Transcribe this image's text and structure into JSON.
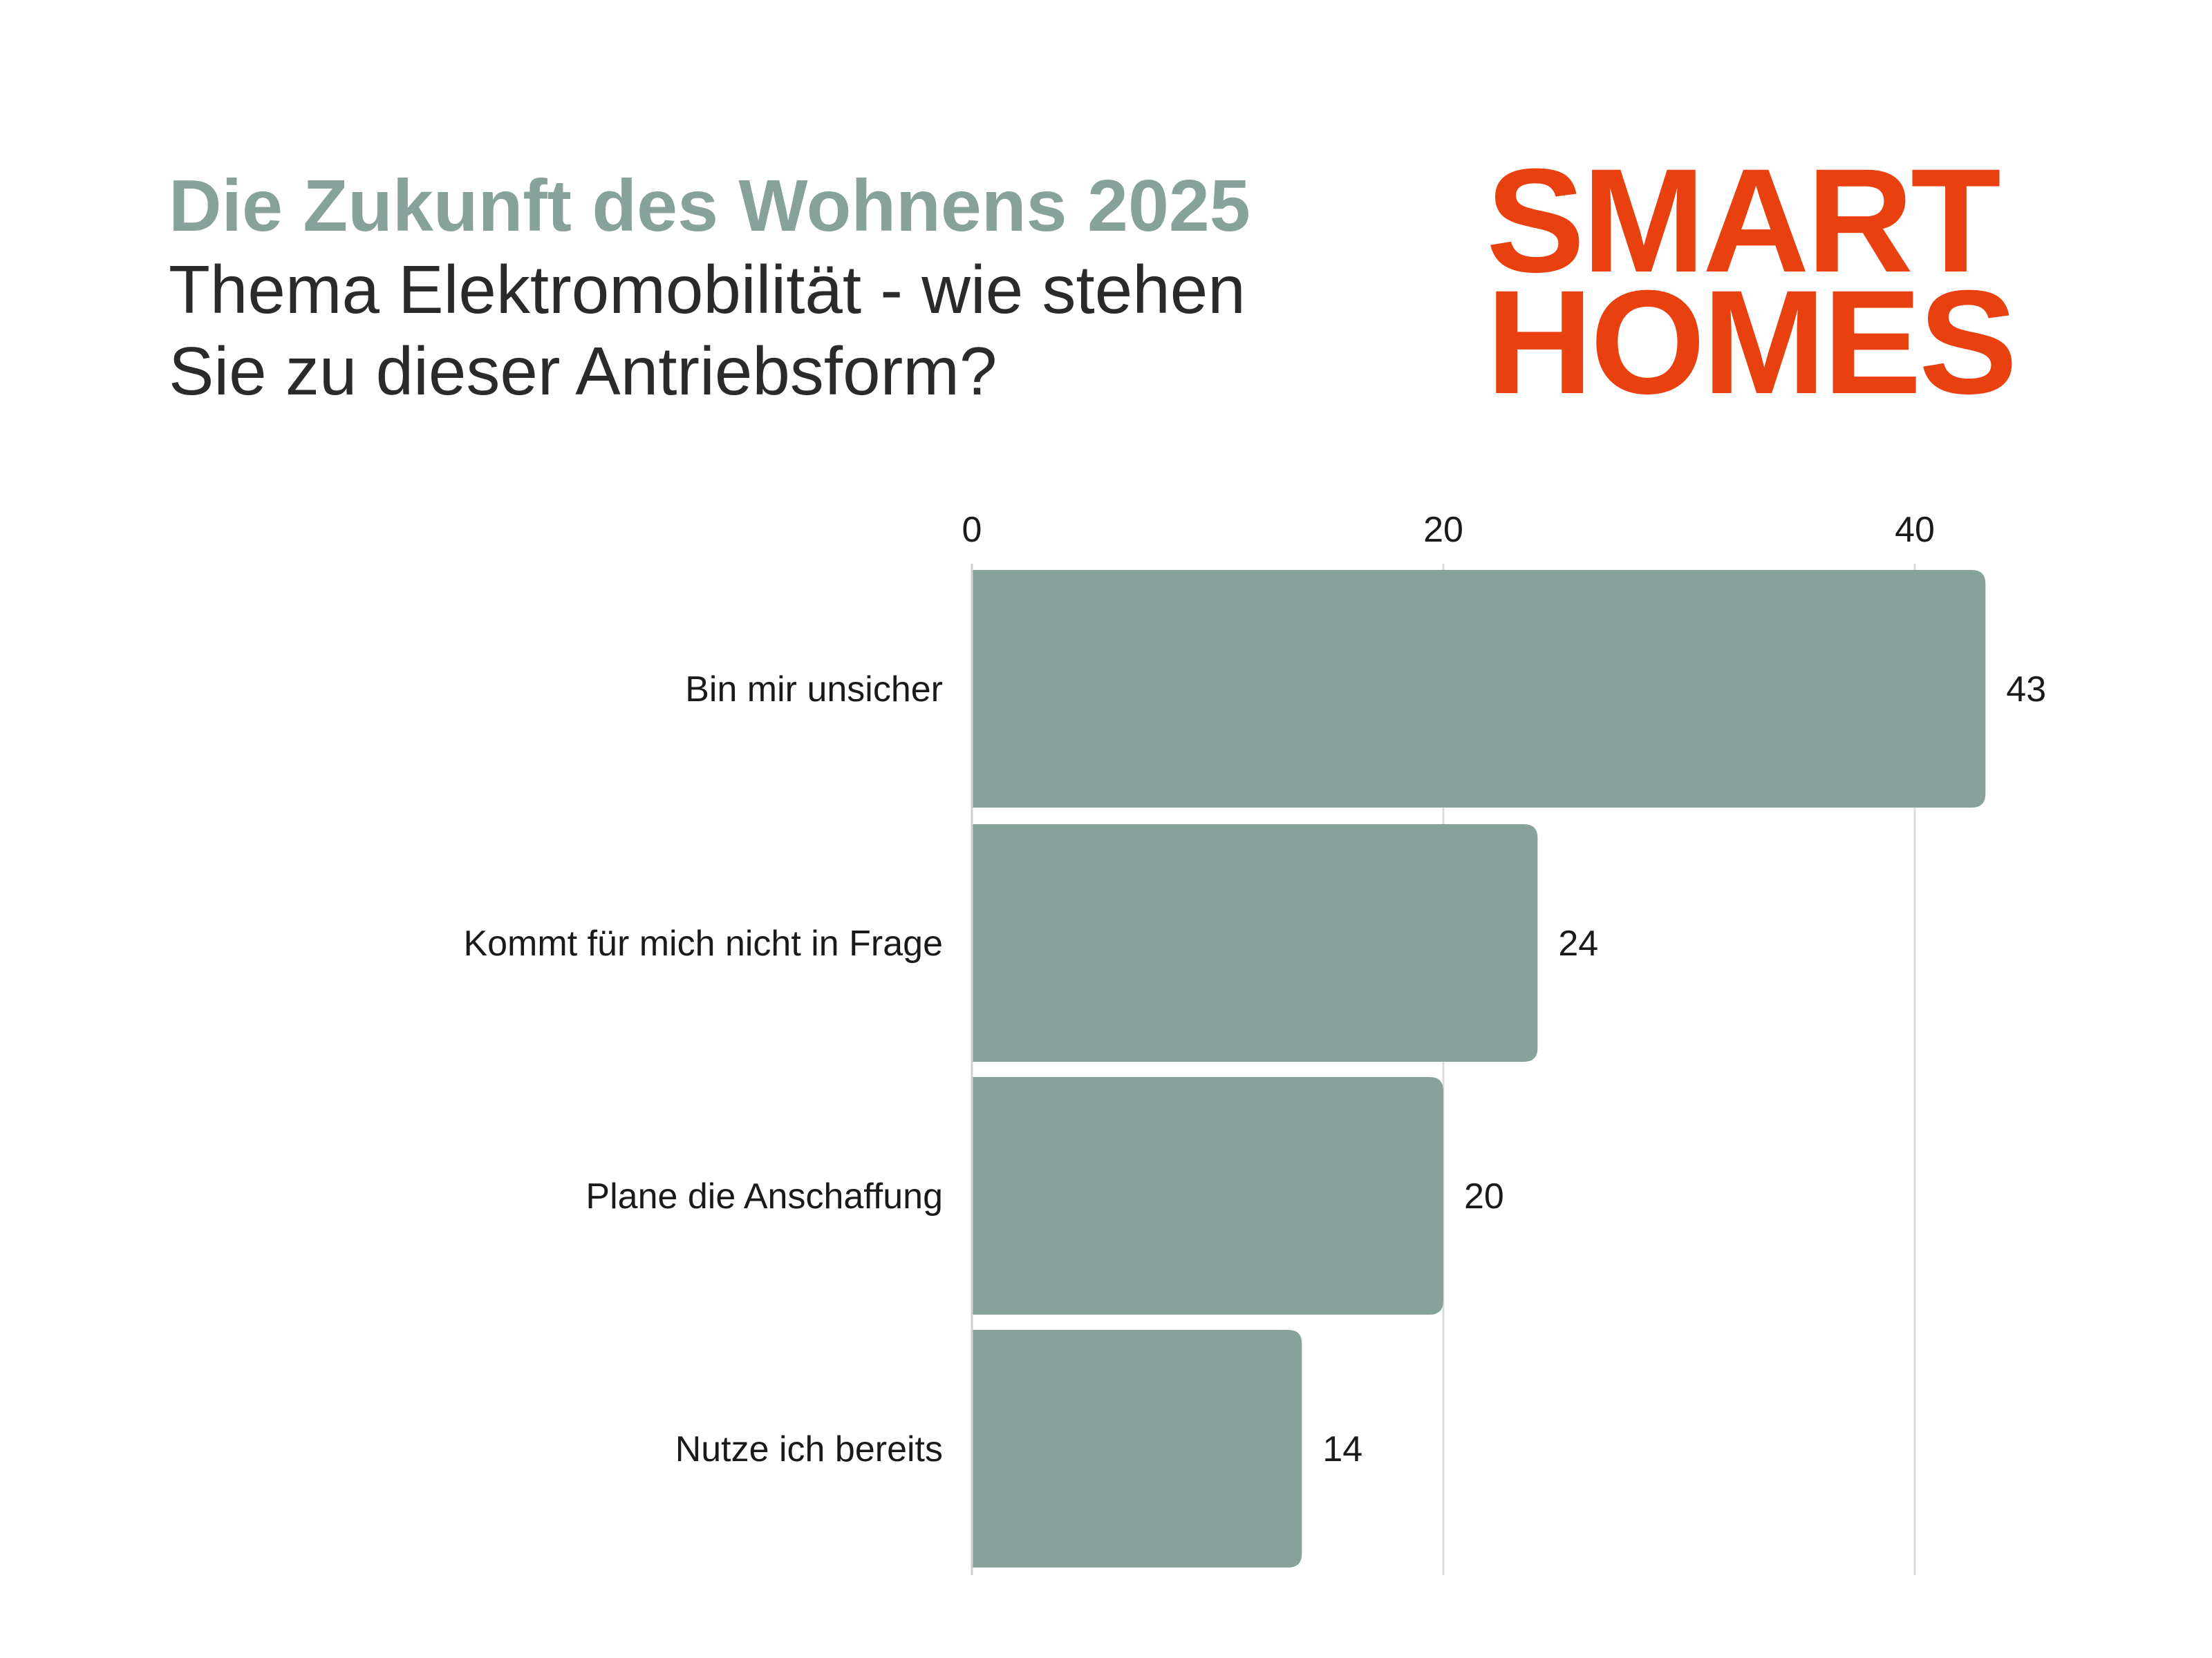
{
  "header": {
    "title": "Die Zukunft des Wohnens 2025",
    "subtitle": "Thema Elektromobilität - wie stehen Sie zu dieser Antriebsform?"
  },
  "logo": {
    "line1": "SMART",
    "line2": "HOMES",
    "color": "#e8410f"
  },
  "colors": {
    "title": "#87a19b",
    "bar": "#87a19b",
    "grid": "#dddddd",
    "text": "#1a1a1a"
  },
  "chart_data": {
    "type": "bar",
    "orientation": "horizontal",
    "title": "Die Zukunft des Wohnens 2025",
    "subtitle": "Thema Elektromobilität - wie stehen Sie zu dieser Antriebsform?",
    "categories": [
      "Bin mir unsicher",
      "Kommt für mich nicht in Frage",
      "Plane die Anschaffung",
      "Nutze ich bereits"
    ],
    "values": [
      43,
      24,
      20,
      14
    ],
    "xlabel": "",
    "ylabel": "",
    "xlim": [
      0,
      45
    ],
    "xticks": [
      0,
      20,
      40
    ],
    "axis_position": "top",
    "grid": true,
    "data_labels": true
  }
}
